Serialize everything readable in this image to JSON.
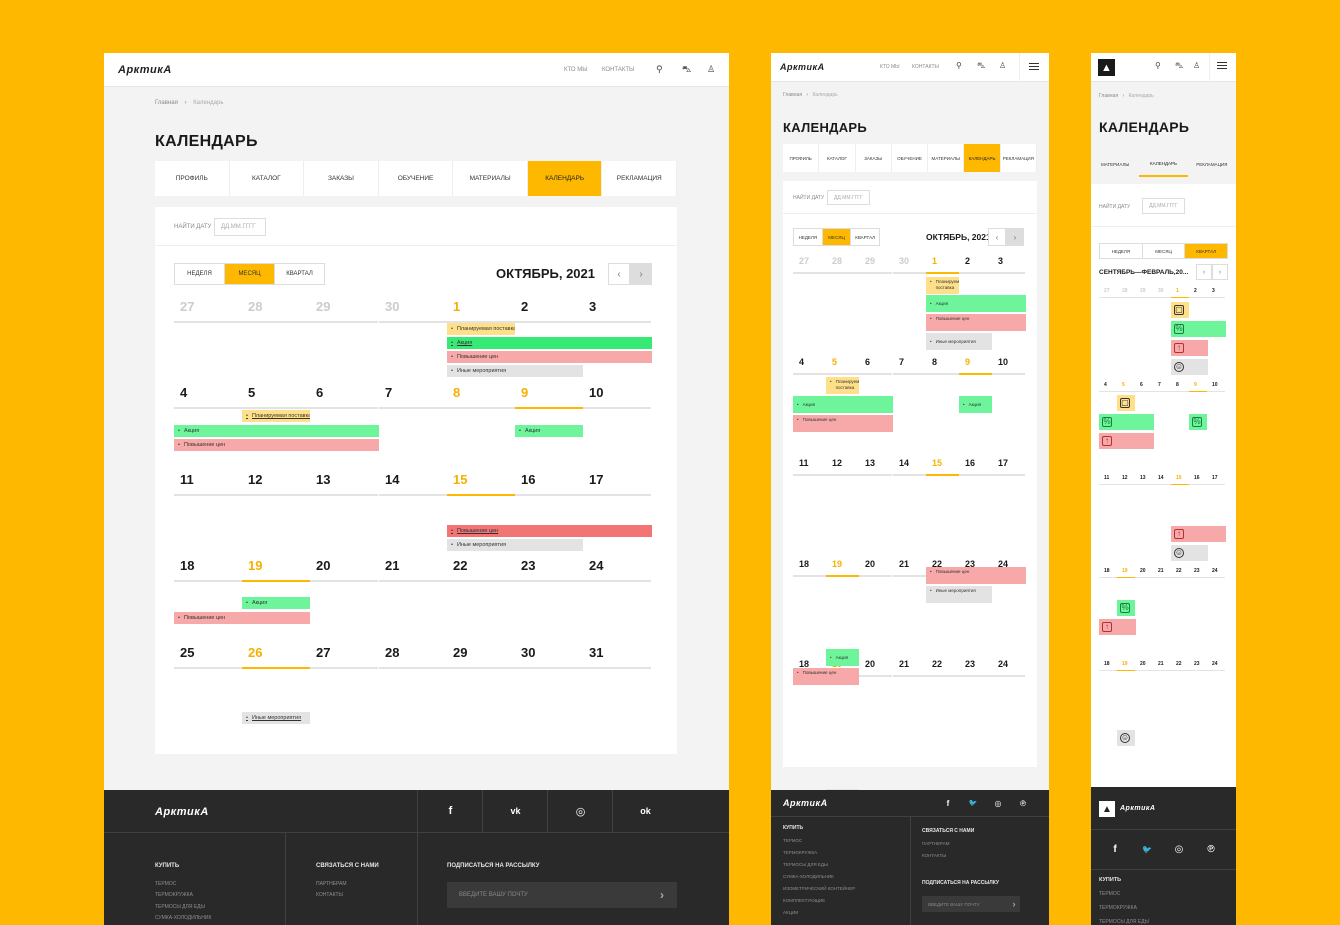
{
  "brand": "АрктикА",
  "nav": {
    "about": "КТО МЫ",
    "contacts": "КОНТАКТЫ"
  },
  "breadcrumb": {
    "home": "Главная",
    "sep": "›",
    "current": "Календарь"
  },
  "page_title": "КАЛЕНДАРЬ",
  "tabs": [
    "ПРОФИЛЬ",
    "КАТАЛОГ",
    "ЗАКАЗЫ",
    "ОБУЧЕНИЕ",
    "МАТЕРИАЛЫ",
    "КАЛЕНДАРЬ",
    "РЕКЛАМАЦИЯ"
  ],
  "mobile_tabs": [
    "МАТЕРИАЛЫ",
    "КАЛЕНДАРЬ",
    "РЕКЛАМАЦИЯ"
  ],
  "date_search": {
    "label": "НАЙТИ ДАТУ",
    "placeholder": "ДД.ММ.ГГГГ"
  },
  "views": [
    "НЕДЕЛЯ",
    "МЕСЯЦ",
    "КВАРТАЛ"
  ],
  "month_title": "ОКТЯБРЬ, 2021",
  "quarter_title": "СЕНТЯБРЬ—ФЕВРАЛЬ,20...",
  "prev": "‹",
  "next": "›",
  "weeks": [
    [
      "27",
      "28",
      "29",
      "30",
      "1",
      "2",
      "3"
    ],
    [
      "4",
      "5",
      "6",
      "7",
      "8",
      "9",
      "10"
    ],
    [
      "11",
      "12",
      "13",
      "14",
      "15",
      "16",
      "17"
    ],
    [
      "18",
      "19",
      "20",
      "21",
      "22",
      "23",
      "24"
    ],
    [
      "25",
      "26",
      "27",
      "28",
      "29",
      "30",
      "31"
    ]
  ],
  "tablet_last_week": [
    "18",
    "19",
    "20",
    "21",
    "22",
    "23",
    "24"
  ],
  "events": {
    "planned": "Планируемая поставка",
    "promo": "Акция",
    "price_up": "Повышение цен",
    "other": "Иные мероприятия"
  },
  "tablet_events": {
    "planned": "Планируемая поставка",
    "price_up": "Повышение цен",
    "other": "Иные мероприятия"
  },
  "footer": {
    "buy": "КУПИТЬ",
    "buy_links": [
      "ТЕРМОС",
      "ТЕРМОКРУЖКА",
      "ТЕРМОСЫ ДЛЯ ЕДЫ",
      "СУМКА-ХОЛОДИЛЬНИК",
      "ИЗОМЕТРИЧЕСКИЙ КОНТЕЙНЕР",
      "КОМПЛЕКТУЮЩИЕ",
      "АКЦИИ"
    ],
    "contact": "СВЯЗАТЬСЯ С НАМИ",
    "contact_links": [
      "ПАРТНЕРАМ",
      "КОНТАКТЫ"
    ],
    "subscribe": "ПОДПИСАТЬСЯ НА РАССЫЛКУ",
    "email_placeholder": "ВВЕДИТЕ ВАШУ ПОЧТУ",
    "social": {
      "fb": "f",
      "vk": "vk",
      "ig": "◎",
      "ok": "ok",
      "tw": "🐦",
      "pin": "℗"
    }
  },
  "colors": {
    "accent": "#FFB800",
    "green": "#6EF59B",
    "red": "#F7A8A8",
    "yellow": "#FFE08A",
    "gray": "#E3E3E3",
    "footer": "#292929"
  }
}
